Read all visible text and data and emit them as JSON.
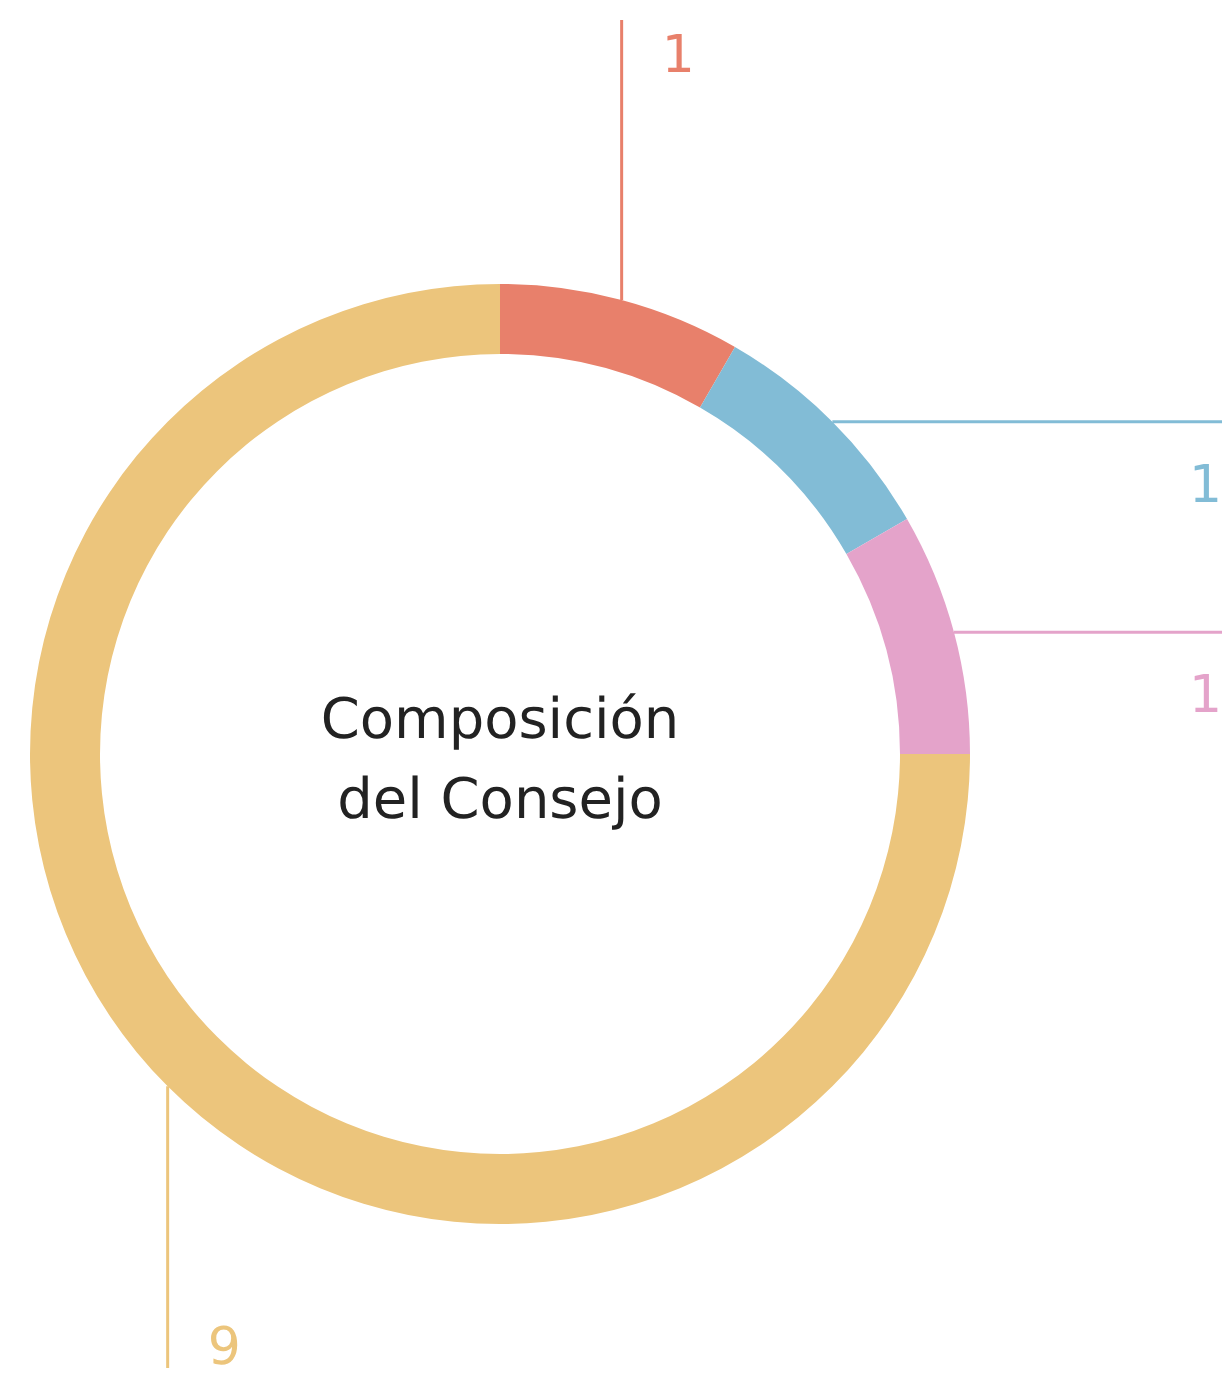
{
  "chart_data": {
    "type": "donut",
    "title": "Composición del Consejo",
    "categories": [
      null,
      null,
      null,
      null
    ],
    "values": [
      1,
      1,
      1,
      9
    ],
    "colors": [
      "#e8806b",
      "#82bcd6",
      "#e4a3ca",
      "#ecc57c"
    ],
    "data_labels": true
  }
}
